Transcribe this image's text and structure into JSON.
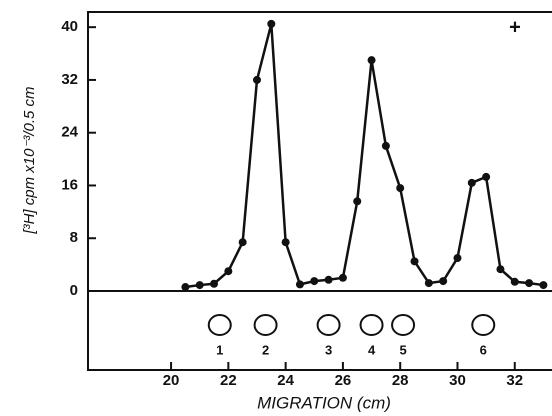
{
  "chart_data": {
    "type": "line",
    "x": [
      20.5,
      21,
      21.5,
      22,
      22.5,
      23,
      23.5,
      24,
      24.5,
      25,
      25.5,
      26,
      26.5,
      27,
      27.5,
      28,
      28.5,
      29,
      29.5,
      30,
      30.5,
      31,
      31.5,
      32,
      32.5,
      33
    ],
    "values": [
      0.6,
      0.9,
      1.1,
      3,
      7.4,
      32,
      40.5,
      7.4,
      1,
      1.5,
      1.7,
      2,
      13.6,
      35,
      22,
      15.6,
      4.5,
      1.2,
      1.5,
      5,
      16.4,
      17.3,
      3.3,
      1.4,
      1.2,
      0.9
    ],
    "color": "#111111",
    "xlim": [
      17.1,
      33.3
    ],
    "xticks": [
      20,
      22,
      24,
      26,
      28,
      30,
      32
    ],
    "ylim": [
      0,
      42.3
    ],
    "yticks": [
      0,
      8,
      16,
      24,
      32,
      40
    ],
    "x_label": "MIGRATION (cm)",
    "y_label": "[³H] cpm x10⁻³/0.5 cm",
    "annotation": "+",
    "spots": [
      {
        "x": 21.7,
        "label": "1"
      },
      {
        "x": 23.3,
        "label": "2"
      },
      {
        "x": 25.5,
        "label": "3"
      },
      {
        "x": 27.0,
        "label": "4"
      },
      {
        "x": 28.1,
        "label": "5"
      },
      {
        "x": 30.9,
        "label": "6"
      }
    ],
    "grid": false
  }
}
